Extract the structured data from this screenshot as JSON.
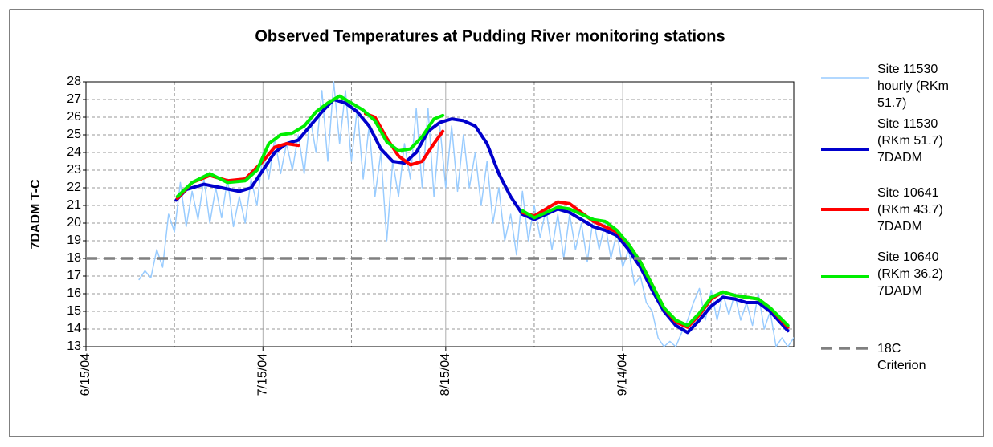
{
  "chart_data": {
    "type": "line",
    "title": "Observed Temperatures at Pudding River monitoring stations",
    "ylabel": "7DADM T-C",
    "xlim": [
      0,
      120
    ],
    "ylim": [
      13,
      28
    ],
    "xticks": [
      {
        "value": 0,
        "label": "6/15/04"
      },
      {
        "value": 30,
        "label": "7/15/04"
      },
      {
        "value": 61,
        "label": "8/15/04"
      },
      {
        "value": 91,
        "label": "9/14/04"
      }
    ],
    "xgrid": [
      15,
      45,
      76,
      106
    ],
    "yticks": [
      13,
      14,
      15,
      16,
      17,
      18,
      19,
      20,
      21,
      22,
      23,
      24,
      25,
      26,
      27,
      28
    ],
    "grid": true,
    "legend": "right",
    "series": [
      {
        "name": "Site 11530 hourly (RKm 51.7)",
        "color": "#99ccff",
        "width": 1.5,
        "x": [
          9,
          10,
          11,
          12,
          13,
          14,
          15,
          16,
          17,
          18,
          19,
          20,
          21,
          22,
          23,
          24,
          25,
          26,
          27,
          28,
          29,
          30,
          31,
          32,
          33,
          34,
          35,
          36,
          37,
          38,
          39,
          40,
          41,
          42,
          43,
          44,
          45,
          46,
          47,
          48,
          49,
          50,
          51,
          52,
          53,
          54,
          55,
          56,
          57,
          58,
          59,
          60,
          61,
          62,
          63,
          64,
          65,
          66,
          67,
          68,
          69,
          70,
          71,
          72,
          73,
          74,
          75,
          76,
          77,
          78,
          79,
          80,
          81,
          82,
          83,
          84,
          85,
          86,
          87,
          88,
          89,
          90,
          91,
          92,
          93,
          94,
          95,
          96,
          97,
          98,
          99,
          100,
          101,
          102,
          103,
          104,
          105,
          106,
          107,
          108,
          109,
          110,
          111,
          112,
          113,
          114,
          115,
          116,
          117,
          118,
          119,
          120
        ],
        "values": [
          16.8,
          17.3,
          16.9,
          18.5,
          17.5,
          20.5,
          19.5,
          22.3,
          19.8,
          21.8,
          20.2,
          22.5,
          20.0,
          22.0,
          20.3,
          22.5,
          19.8,
          21.5,
          20.0,
          22.5,
          21.0,
          24.0,
          22.5,
          24.8,
          22.8,
          24.5,
          23.0,
          25.0,
          22.8,
          26.0,
          24.0,
          27.5,
          23.5,
          28.0,
          24.5,
          27.5,
          23.5,
          26.5,
          22.5,
          25.5,
          21.5,
          24.0,
          19.0,
          23.5,
          21.5,
          24.5,
          22.5,
          26.5,
          22.0,
          26.5,
          21.5,
          25.5,
          22.0,
          25.5,
          21.8,
          25.0,
          22.0,
          24.0,
          21.0,
          23.5,
          20.0,
          22.0,
          19.0,
          20.5,
          18.2,
          21.8,
          19.0,
          21.0,
          19.2,
          20.8,
          18.5,
          20.5,
          18.0,
          20.5,
          18.5,
          20.0,
          17.8,
          20.3,
          18.5,
          20.0,
          18.0,
          19.5,
          17.5,
          18.5,
          16.5,
          17.0,
          15.5,
          15.0,
          13.5,
          13.0,
          13.3,
          13.0,
          13.8,
          14.5,
          15.5,
          16.3,
          14.5,
          16.2,
          14.5,
          16.0,
          14.8,
          16.0,
          14.5,
          15.5,
          14.2,
          16.0,
          14.0,
          15.0,
          13.0,
          13.5,
          13.0,
          13.5
        ]
      },
      {
        "name": "Site 11530 (RKm 51.7) 7DADM",
        "color": "#0000cc",
        "width": 4,
        "x": [
          15.3,
          17,
          20,
          23,
          26,
          28,
          30,
          32,
          34,
          36,
          38,
          40,
          42,
          44,
          46,
          48,
          50,
          52,
          54,
          56,
          58,
          60,
          62,
          64,
          66,
          68,
          70,
          72,
          74,
          76,
          78,
          80,
          82,
          84,
          86,
          88,
          90,
          92,
          94,
          96,
          98,
          100,
          102,
          104,
          106,
          108,
          110,
          112,
          114,
          116,
          119
        ],
        "values": [
          21.3,
          21.9,
          22.2,
          22.0,
          21.8,
          22.0,
          23.0,
          24.0,
          24.5,
          24.7,
          25.5,
          26.3,
          27.0,
          26.8,
          26.3,
          25.5,
          24.2,
          23.5,
          23.4,
          24.0,
          25.2,
          25.7,
          25.9,
          25.8,
          25.5,
          24.5,
          22.8,
          21.5,
          20.5,
          20.2,
          20.5,
          20.8,
          20.6,
          20.2,
          19.8,
          19.6,
          19.3,
          18.5,
          17.5,
          16.2,
          15.0,
          14.2,
          13.8,
          14.5,
          15.3,
          15.8,
          15.7,
          15.5,
          15.5,
          15.0,
          13.9
        ]
      },
      {
        "name": "Site 10641 (RKm 43.7) 7DADM",
        "color": "#ff0000",
        "width": 4,
        "x": [
          15.5,
          18,
          21,
          24,
          27,
          30,
          32,
          34,
          36,
          41,
          47.4,
          49,
          51,
          53,
          55,
          57,
          59,
          60.5,
          67,
          74,
          76,
          78,
          80,
          82,
          84,
          86,
          88,
          90,
          92,
          94,
          96,
          98,
          100,
          102,
          104,
          106,
          108,
          110,
          112,
          114,
          116,
          119
        ],
        "values": [
          21.4,
          22.3,
          22.7,
          22.4,
          22.5,
          23.5,
          24.3,
          24.5,
          24.4,
          null,
          26.2,
          26.0,
          24.8,
          23.8,
          23.3,
          23.5,
          24.5,
          25.2,
          null,
          20.6,
          20.4,
          20.8,
          21.2,
          21.1,
          20.6,
          20.1,
          19.8,
          19.5,
          18.8,
          17.8,
          16.5,
          15.2,
          14.4,
          14.1,
          14.8,
          15.7,
          16.1,
          15.9,
          15.8,
          15.7,
          15.2,
          14.1
        ]
      },
      {
        "name": "Site 10640 (RKm 36.2) 7DADM",
        "color": "#00ee00",
        "width": 4,
        "x": [
          15.5,
          18,
          21,
          24,
          27,
          29,
          31,
          33,
          35,
          37,
          39,
          41,
          43,
          45,
          47,
          49,
          51,
          53,
          55,
          57,
          59,
          60.5,
          67,
          74,
          76,
          78,
          80,
          82,
          84,
          86,
          88,
          90,
          92,
          94,
          96,
          98,
          100,
          102,
          104,
          106,
          108,
          110,
          112,
          114,
          116,
          119
        ],
        "values": [
          21.5,
          22.3,
          22.8,
          22.3,
          22.4,
          23.0,
          24.5,
          25.0,
          25.1,
          25.5,
          26.3,
          26.8,
          27.2,
          26.8,
          26.4,
          25.8,
          24.6,
          24.1,
          24.2,
          24.9,
          25.9,
          26.1,
          null,
          20.7,
          20.3,
          20.6,
          20.9,
          20.8,
          20.5,
          20.2,
          20.1,
          19.6,
          18.8,
          17.8,
          16.5,
          15.2,
          14.5,
          14.2,
          14.9,
          15.8,
          16.1,
          15.9,
          15.8,
          15.7,
          15.2,
          14.2
        ]
      },
      {
        "name": "18C Criterion",
        "color": "#808080",
        "width": 3.5,
        "dashed": true,
        "x": [
          0,
          120
        ],
        "values": [
          18,
          18
        ]
      }
    ]
  }
}
